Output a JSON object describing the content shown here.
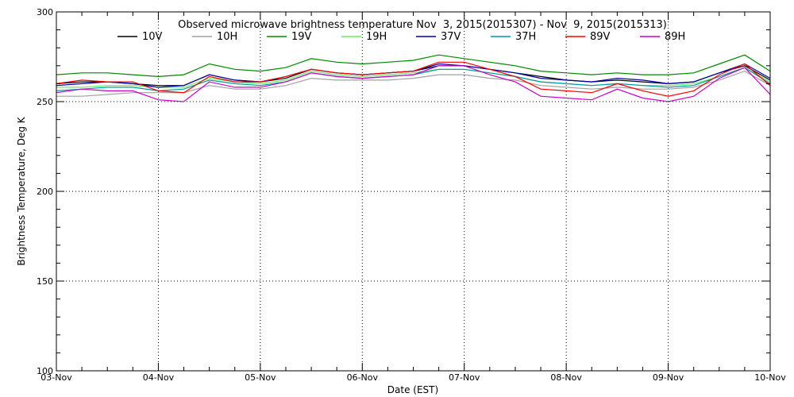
{
  "chart_data": {
    "type": "line",
    "title": "Observed microwave brightness temperature Nov  3, 2015(2015307) - Nov  9, 2015(2015313)",
    "xlabel": "Date (EST)",
    "ylabel": "Brightness Temperature, Deg K",
    "xlim": [
      "2015-11-03",
      "2015-11-10"
    ],
    "ylim": [
      100,
      300
    ],
    "x_tick_labels": [
      "03-Nov",
      "04-Nov",
      "05-Nov",
      "06-Nov",
      "07-Nov",
      "08-Nov",
      "09-Nov",
      "10-Nov"
    ],
    "y_ticks": [
      100,
      150,
      200,
      250,
      300
    ],
    "grid": "dotted, major ticks",
    "legend": "top",
    "x": [
      "2015-11-03 00:00",
      "2015-11-03 06:00",
      "2015-11-03 12:00",
      "2015-11-03 18:00",
      "2015-11-04 00:00",
      "2015-11-04 06:00",
      "2015-11-04 12:00",
      "2015-11-04 18:00",
      "2015-11-05 00:00",
      "2015-11-05 06:00",
      "2015-11-05 12:00",
      "2015-11-05 18:00",
      "2015-11-06 00:00",
      "2015-11-06 06:00",
      "2015-11-06 12:00",
      "2015-11-06 18:00",
      "2015-11-07 00:00",
      "2015-11-07 06:00",
      "2015-11-07 12:00",
      "2015-11-07 18:00",
      "2015-11-08 00:00",
      "2015-11-08 06:00",
      "2015-11-08 12:00",
      "2015-11-08 18:00",
      "2015-11-09 00:00",
      "2015-11-09 06:00",
      "2015-11-09 12:00",
      "2015-11-09 18:00",
      "2015-11-10 00:00"
    ],
    "series": [
      {
        "name": "10V",
        "color": "#000000",
        "values": [
          260,
          261,
          261,
          260,
          259,
          259,
          265,
          262,
          261,
          263,
          268,
          266,
          265,
          266,
          267,
          270,
          270,
          268,
          266,
          264,
          262,
          261,
          262,
          261,
          260,
          261,
          266,
          270,
          262
        ]
      },
      {
        "name": "10H",
        "color": "#a0a0a0",
        "values": [
          253,
          253,
          254,
          255,
          255,
          255,
          259,
          257,
          257,
          259,
          263,
          262,
          262,
          262,
          263,
          265,
          265,
          263,
          262,
          259,
          258,
          257,
          258,
          257,
          257,
          258,
          262,
          267,
          259
        ]
      },
      {
        "name": "19V",
        "color": "#008800",
        "values": [
          265,
          266,
          266,
          265,
          264,
          265,
          271,
          268,
          267,
          269,
          274,
          272,
          271,
          272,
          273,
          276,
          274,
          272,
          270,
          267,
          266,
          265,
          266,
          265,
          265,
          266,
          271,
          276,
          267
        ]
      },
      {
        "name": "19H",
        "color": "#66ee66",
        "values": [
          258,
          258,
          259,
          259,
          258,
          258,
          263,
          261,
          260,
          262,
          267,
          265,
          264,
          265,
          266,
          268,
          268,
          266,
          264,
          261,
          260,
          259,
          260,
          259,
          259,
          260,
          264,
          269,
          261
        ]
      },
      {
        "name": "37V",
        "color": "#0000aa",
        "values": [
          259,
          260,
          261,
          260,
          258,
          259,
          265,
          262,
          261,
          264,
          268,
          266,
          265,
          266,
          267,
          271,
          270,
          268,
          266,
          263,
          262,
          261,
          263,
          262,
          260,
          261,
          266,
          271,
          263
        ]
      },
      {
        "name": "37H",
        "color": "#0099aa",
        "values": [
          256,
          257,
          258,
          258,
          256,
          257,
          262,
          260,
          259,
          261,
          266,
          264,
          263,
          264,
          265,
          268,
          268,
          266,
          264,
          261,
          260,
          259,
          260,
          259,
          258,
          259,
          264,
          269,
          260
        ]
      },
      {
        "name": "89V",
        "color": "#ff0000",
        "values": [
          260,
          262,
          261,
          261,
          256,
          255,
          264,
          261,
          261,
          264,
          268,
          266,
          265,
          266,
          267,
          272,
          272,
          268,
          264,
          257,
          256,
          255,
          260,
          256,
          253,
          256,
          265,
          271,
          259
        ]
      },
      {
        "name": "89H",
        "color": "#cc00cc",
        "values": [
          255,
          257,
          256,
          256,
          251,
          250,
          261,
          258,
          258,
          261,
          266,
          264,
          263,
          264,
          265,
          270,
          270,
          265,
          261,
          253,
          252,
          251,
          257,
          252,
          250,
          253,
          263,
          269,
          254
        ]
      }
    ]
  }
}
